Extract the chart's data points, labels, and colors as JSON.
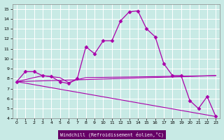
{
  "xlabel": "Windchill (Refroidissement éolien,°C)",
  "background_color": "#c8eae5",
  "line_color": "#aa00aa",
  "xlim": [
    -0.5,
    23.5
  ],
  "ylim": [
    4,
    15.5
  ],
  "yticks": [
    4,
    5,
    6,
    7,
    8,
    9,
    10,
    11,
    12,
    13,
    14,
    15
  ],
  "xticks": [
    0,
    1,
    2,
    3,
    4,
    5,
    6,
    7,
    8,
    9,
    10,
    11,
    12,
    13,
    14,
    15,
    16,
    17,
    18,
    19,
    20,
    21,
    22,
    23
  ],
  "series1_x": [
    0,
    1,
    2,
    3,
    4,
    5,
    6,
    7,
    8,
    9,
    10,
    11,
    12,
    13,
    14,
    15,
    16,
    17,
    18,
    19,
    20,
    21,
    22,
    23
  ],
  "series1_y": [
    7.7,
    8.7,
    8.7,
    8.3,
    8.2,
    7.7,
    7.5,
    8.0,
    11.2,
    10.5,
    11.8,
    11.8,
    13.8,
    14.7,
    14.8,
    13.0,
    12.2,
    9.5,
    8.3,
    8.3,
    5.8,
    5.0,
    6.2,
    4.2
  ],
  "series2_x": [
    0,
    23
  ],
  "series2_y": [
    7.7,
    8.3
  ],
  "series3_x": [
    0,
    23
  ],
  "series3_y": [
    7.7,
    4.2
  ],
  "series4_x": [
    0,
    3,
    5,
    6,
    7,
    8,
    23
  ],
  "series4_y": [
    7.7,
    8.3,
    8.1,
    7.6,
    7.9,
    8.1,
    8.3
  ]
}
